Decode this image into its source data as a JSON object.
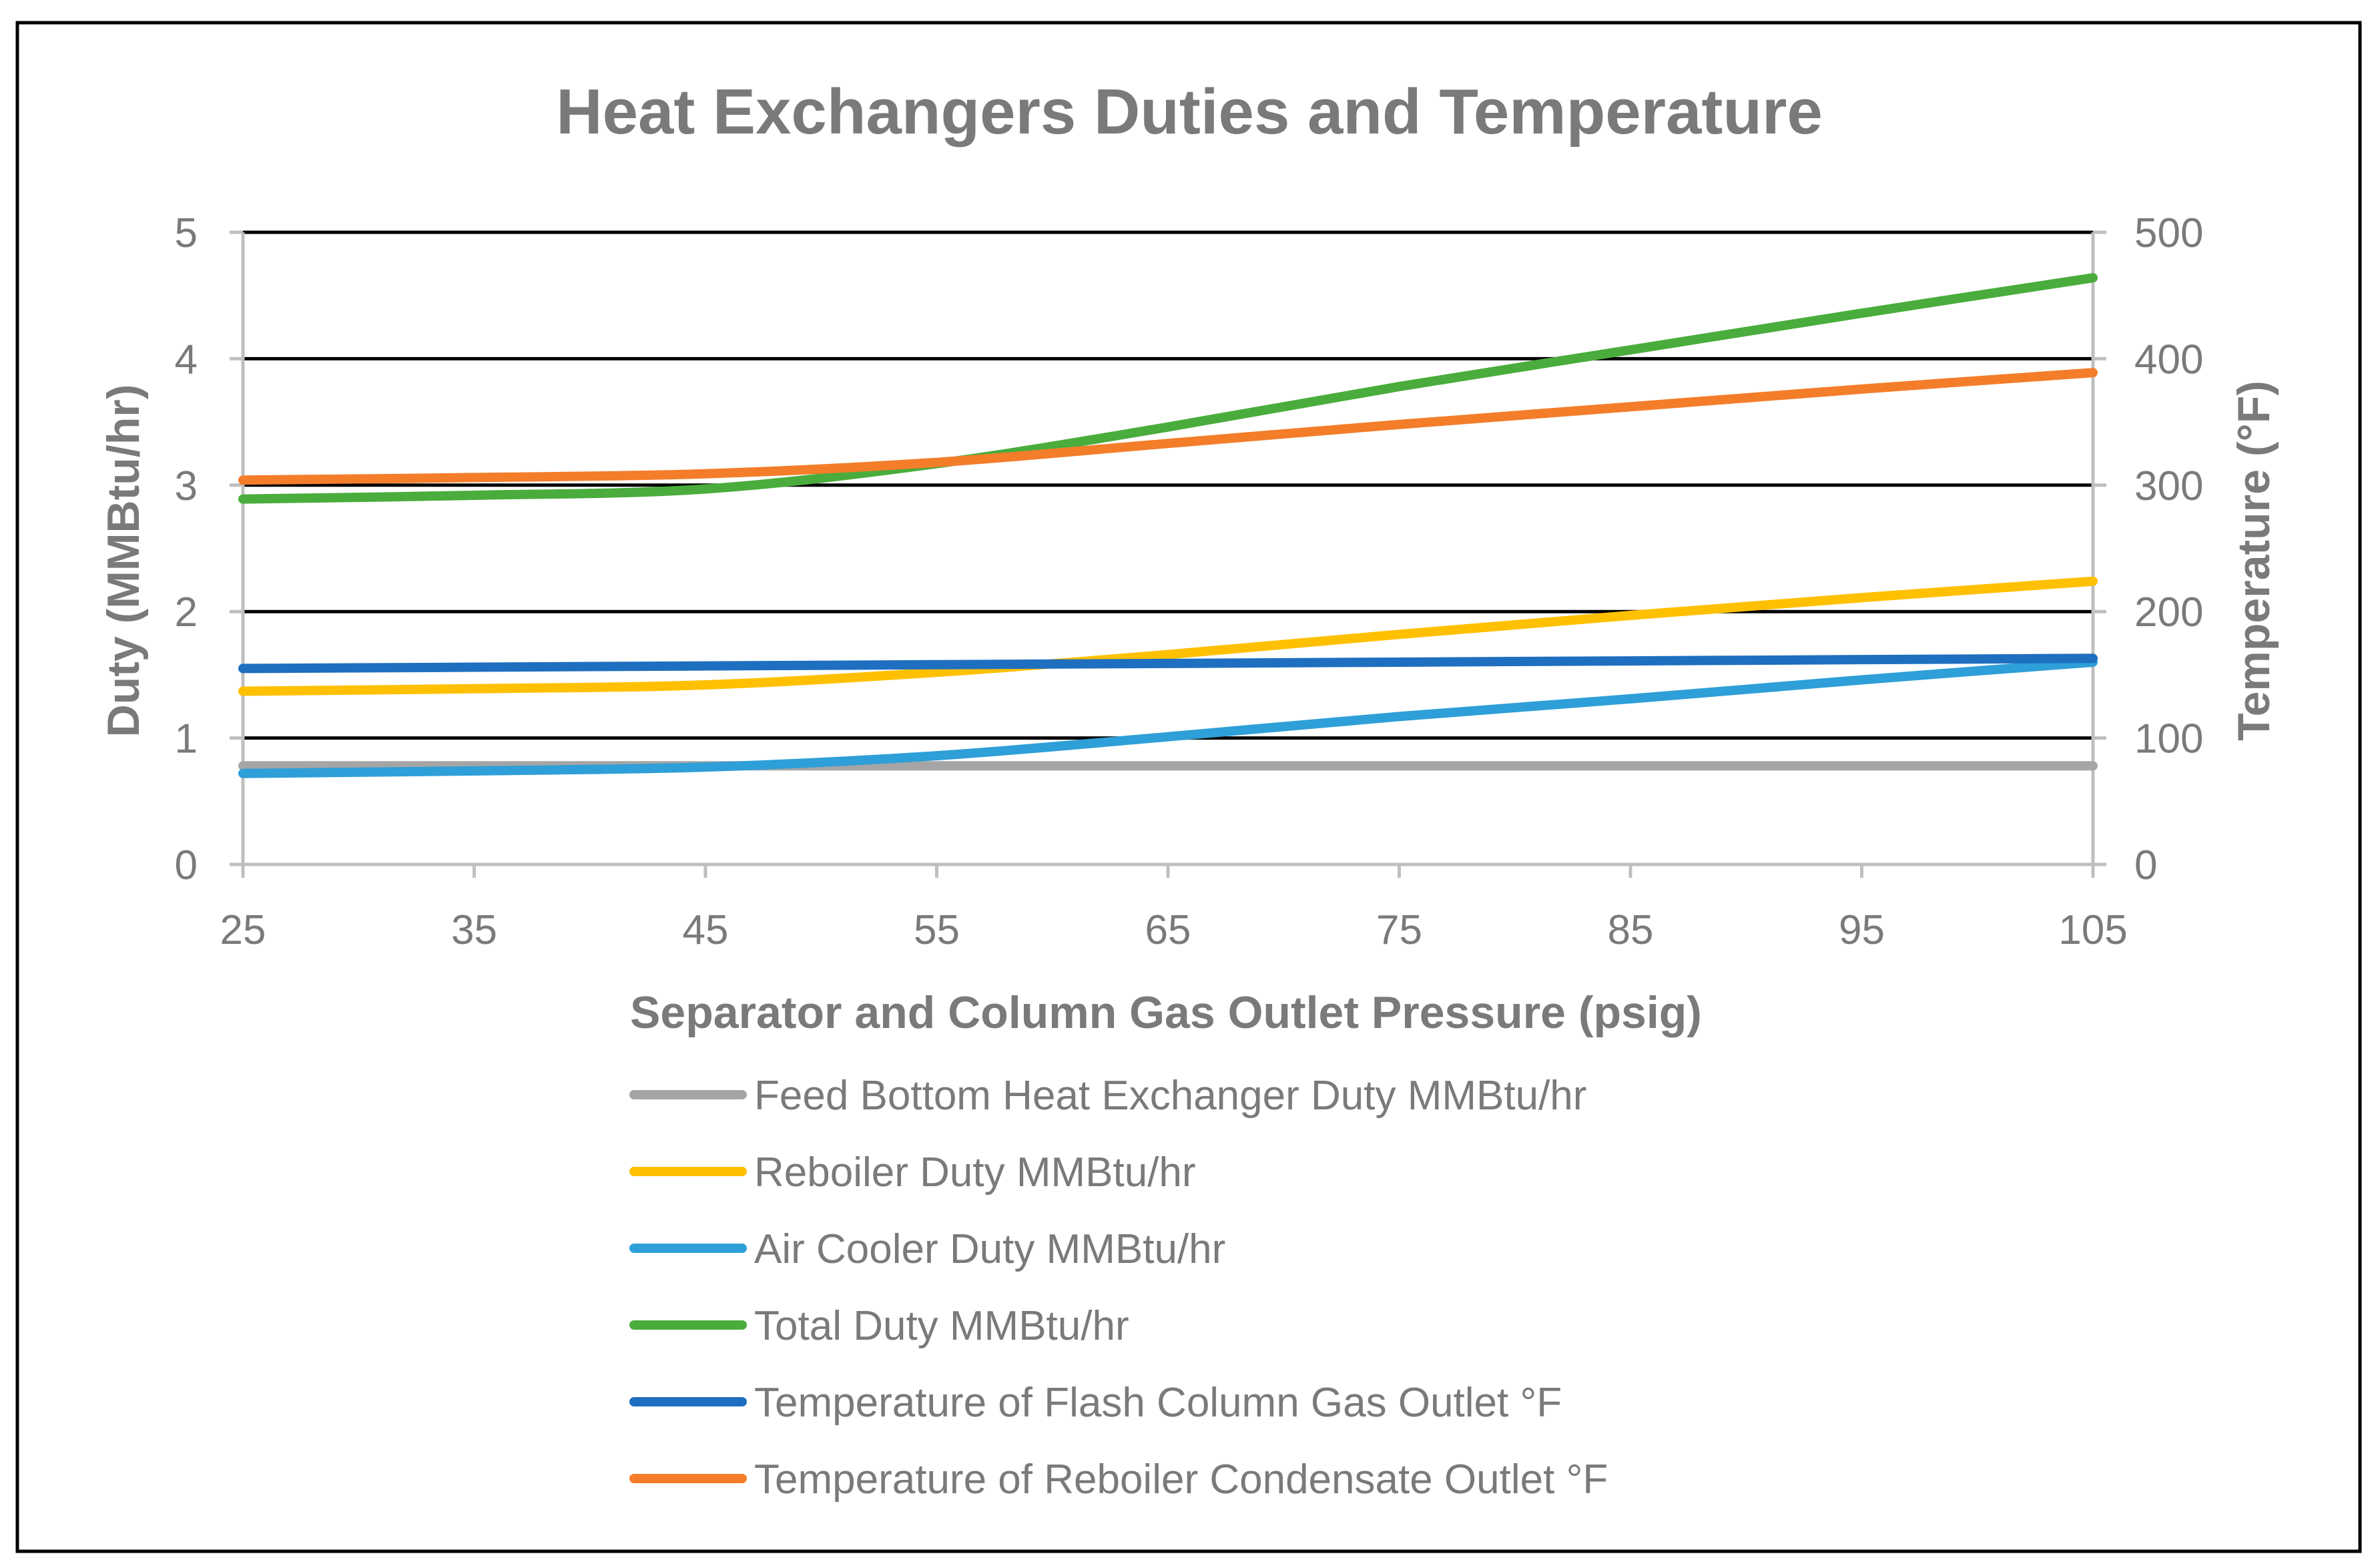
{
  "chart_data": {
    "type": "line",
    "title": "Heat Exchangers Duties and Temperature",
    "xlabel": "Separator and Column Gas Outlet Pressure (psig)",
    "ylabel": "Duty (MMBtu/hr)",
    "y2label": "Temperature (°F)",
    "xlim": [
      25,
      105
    ],
    "ylim": [
      0,
      5
    ],
    "y2lim": [
      0,
      500
    ],
    "x_ticks": [
      25,
      35,
      45,
      55,
      65,
      75,
      85,
      95,
      105
    ],
    "x_tick_labels": [
      "25",
      "35",
      "45",
      "55",
      "65",
      "75",
      "85",
      "95",
      "105"
    ],
    "y_tick_labels": [
      "0",
      "1",
      "2",
      "3",
      "4",
      "5"
    ],
    "y2_tick_labels": [
      "0",
      "100",
      "200",
      "300",
      "400",
      "500"
    ],
    "grid": true,
    "legend_position": "bottom",
    "x": [
      25,
      35,
      45,
      55,
      65,
      75,
      85,
      95,
      105
    ],
    "series": [
      {
        "name": "Feed Bottom Heat Exchanger Duty MMBtu/hr",
        "axis": "left",
        "color": "#a5a5a5",
        "values": [
          0.78,
          0.78,
          0.78,
          0.78,
          0.78,
          0.78,
          0.78,
          0.78,
          0.78
        ]
      },
      {
        "name": "Reboiler Duty MMBtu/hr",
        "axis": "left",
        "color": "#ffc000",
        "values": [
          1.37,
          1.39,
          1.42,
          1.52,
          1.66,
          1.82,
          1.97,
          2.11,
          2.24
        ]
      },
      {
        "name": "Air Cooler Duty MMBtu/hr",
        "axis": "left",
        "color": "#2e9fd8",
        "values": [
          0.72,
          0.74,
          0.77,
          0.86,
          1.01,
          1.17,
          1.31,
          1.46,
          1.6
        ]
      },
      {
        "name": "Total Duty MMBtu/hr",
        "axis": "left",
        "color": "#4aac3c",
        "values": [
          2.89,
          2.92,
          2.97,
          3.17,
          3.46,
          3.78,
          4.07,
          4.36,
          4.64
        ]
      },
      {
        "name": "Temperature of Flash Column Gas Outlet °F",
        "axis": "right",
        "color": "#1f6fc0",
        "values": [
          155,
          156,
          157,
          158,
          159,
          160,
          161,
          162,
          163
        ]
      },
      {
        "name": "Temperature of Reboiler Condensate Outlet °F",
        "axis": "right",
        "color": "#f47d2a",
        "values": [
          304,
          306,
          309,
          318,
          333,
          348,
          362,
          376,
          389
        ]
      }
    ]
  }
}
